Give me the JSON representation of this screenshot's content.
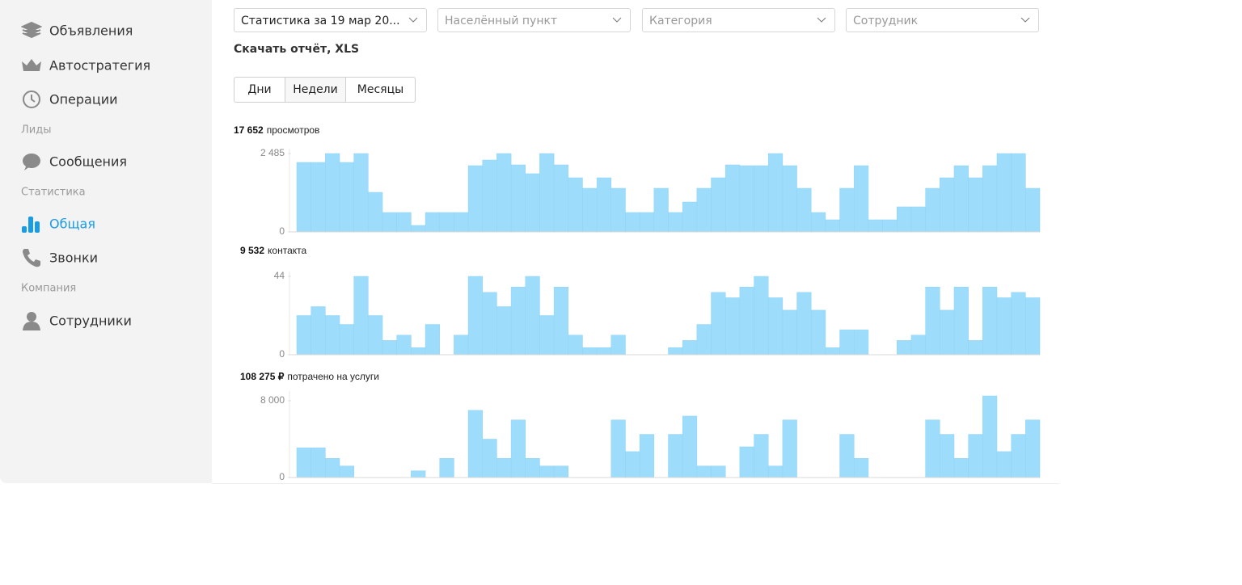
{
  "nav": [
    "Объявления",
    "Автостратегия",
    "Операции",
    "Лиды",
    "Сообщения",
    "Статистика",
    "Общая",
    "Звонки",
    "Компания",
    "Сотрудники"
  ],
  "filters": [
    "Статистика за 19 мар 20...",
    "Населённый пункт",
    "Категория",
    "Сотрудник"
  ],
  "download": "Скачать отчёт, XLS",
  "tabs": [
    "Дни",
    "Недели",
    "Месяцы"
  ],
  "chart_data": [
    {
      "type": "bar",
      "total": "17 652",
      "label": "просмотров",
      "color": "#9edcfb",
      "ylim": [
        0,
        2485
      ],
      "yticks": [
        0,
        {
          "value": 2485,
          "label": "2 485"
        }
      ],
      "values": [
        2203,
        2203,
        2485,
        2203,
        2485,
        1255,
        615,
        615,
        205,
        615,
        615,
        615,
        2100,
        2280,
        2485,
        2126,
        1845,
        2485,
        2126,
        1716,
        1383,
        1716,
        1383,
        615,
        615,
        1383,
        615,
        948,
        1383,
        1716,
        2126,
        2100,
        2100,
        2485,
        2100,
        1383,
        615,
        384,
        1383,
        2100,
        384,
        384,
        794,
        794,
        1383,
        1716,
        2100,
        1716,
        2100,
        2485,
        2485,
        1383
      ]
    },
    {
      "type": "bar",
      "total": "9 532",
      "label": "контакта",
      "color": "#9edcfb",
      "ylim": [
        0,
        44
      ],
      "yticks": [
        0,
        44
      ],
      "values": [
        22,
        27,
        22,
        17,
        44,
        22,
        8,
        11,
        4,
        17,
        0,
        11,
        44,
        35,
        27,
        38,
        44,
        22,
        38,
        11,
        4,
        4,
        11,
        0,
        0,
        0,
        4,
        8,
        17,
        35,
        32,
        38,
        44,
        32,
        25,
        35,
        25,
        4,
        14,
        14,
        0,
        0,
        8,
        11,
        38,
        25,
        38,
        8,
        38,
        32,
        35,
        32
      ]
    },
    {
      "type": "bar",
      "total": "108 275 ₽",
      "label": "потрачено на услуги",
      "color": "#9edcfb",
      "ylim": [
        0,
        8500
      ],
      "yticks": [
        0,
        {
          "value": 8000,
          "label": "8 000"
        }
      ],
      "values": [
        3100,
        3100,
        2000,
        1200,
        0,
        0,
        0,
        0,
        700,
        0,
        2000,
        0,
        7000,
        4000,
        2000,
        6000,
        2000,
        1200,
        1200,
        0,
        0,
        0,
        6000,
        2700,
        4500,
        0,
        4500,
        6400,
        1200,
        1200,
        0,
        3200,
        4500,
        1200,
        6000,
        0,
        0,
        0,
        4500,
        2000,
        0,
        0,
        0,
        0,
        6000,
        4500,
        2000,
        4500,
        8500,
        2700,
        4500,
        6000
      ]
    }
  ]
}
